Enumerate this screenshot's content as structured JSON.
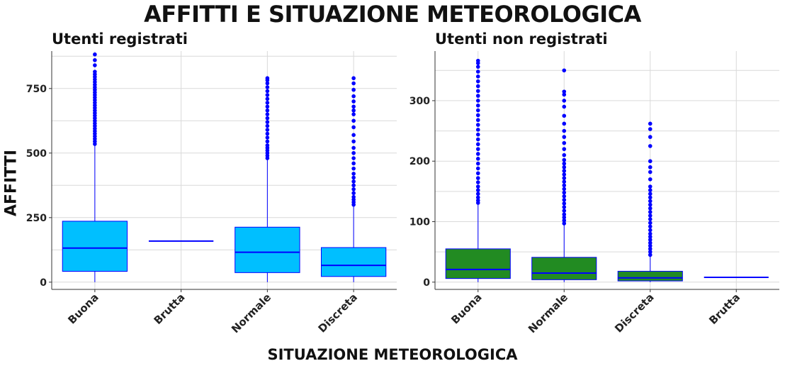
{
  "title": "AFFITTI E SITUAZIONE METEOROLOGICA",
  "xlabel": "SITUAZIONE METEOROLOGICA",
  "ylabel": "AFFITTI",
  "colors": {
    "registered_fill": "#00BFFF",
    "unregistered_fill": "#228B22",
    "line": "#0000FF",
    "grid": "#D9D9D9",
    "axis": "#333333"
  },
  "chart_data": [
    {
      "type": "boxplot",
      "title": "Utenti registrati",
      "fill": "#00BFFF",
      "ylim": [
        -28,
        895
      ],
      "yticks": [
        0,
        250,
        500,
        750
      ],
      "ytick_labels": [
        "0",
        "250",
        "500",
        "750"
      ],
      "grid": true,
      "categories": [
        "Buona",
        "Brutta",
        "Normale",
        "Discreta"
      ],
      "boxes": [
        {
          "category": "Buona",
          "min": 0,
          "q1": 42,
          "median": 132,
          "q3": 236,
          "whisker_high": 530,
          "outliers": [
            535,
            545,
            555,
            565,
            575,
            585,
            595,
            605,
            615,
            625,
            635,
            645,
            655,
            665,
            675,
            685,
            695,
            705,
            715,
            725,
            735,
            745,
            755,
            765,
            775,
            785,
            795,
            805,
            815,
            840,
            860,
            882
          ]
        },
        {
          "category": "Brutta",
          "min": 159,
          "q1": 159,
          "median": 159,
          "q3": 159,
          "whisker_high": 159,
          "outliers": []
        },
        {
          "category": "Normale",
          "min": 0,
          "q1": 37,
          "median": 116,
          "q3": 213,
          "whisker_high": 476,
          "outliers": [
            480,
            490,
            500,
            510,
            520,
            530,
            545,
            560,
            575,
            590,
            605,
            620,
            635,
            650,
            665,
            680,
            695,
            710,
            725,
            740,
            755,
            770,
            782,
            790
          ]
        },
        {
          "category": "Discreta",
          "min": 0,
          "q1": 22,
          "median": 65,
          "q3": 134,
          "whisker_high": 295,
          "outliers": [
            300,
            310,
            320,
            330,
            345,
            360,
            375,
            390,
            405,
            420,
            440,
            460,
            480,
            500,
            520,
            545,
            570,
            600,
            625,
            650,
            665,
            680,
            700,
            720,
            745,
            770,
            790
          ]
        }
      ]
    },
    {
      "type": "boxplot",
      "title": "Utenti non registrati",
      "fill": "#228B22",
      "ylim": [
        -12,
        382
      ],
      "yticks": [
        0,
        100,
        200,
        300
      ],
      "ytick_labels": [
        "0",
        "100",
        "200",
        "300"
      ],
      "grid": true,
      "categories": [
        "Buona",
        "Normale",
        "Discreta",
        "Brutta"
      ],
      "boxes": [
        {
          "category": "Buona",
          "min": 0,
          "q1": 6,
          "median": 21,
          "q3": 55,
          "whisker_high": 128,
          "outliers": [
            131,
            135,
            140,
            146,
            152,
            158,
            165,
            172,
            180,
            188,
            196,
            204,
            212,
            220,
            228,
            236,
            244,
            252,
            260,
            268,
            276,
            284,
            292,
            300,
            308,
            316,
            324,
            332,
            340,
            348,
            356,
            362,
            366
          ]
        },
        {
          "category": "Normale",
          "min": 0,
          "q1": 4,
          "median": 15,
          "q3": 41,
          "whisker_high": 95,
          "outliers": [
            97,
            102,
            107,
            112,
            118,
            124,
            130,
            136,
            142,
            148,
            154,
            160,
            166,
            172,
            178,
            184,
            190,
            196,
            202,
            210,
            220,
            230,
            240,
            250,
            262,
            275,
            290,
            300,
            310,
            315,
            350
          ]
        },
        {
          "category": "Discreta",
          "min": 0,
          "q1": 2,
          "median": 7,
          "q3": 18,
          "whisker_high": 43,
          "outliers": [
            45,
            50,
            55,
            60,
            65,
            70,
            75,
            80,
            86,
            92,
            98,
            104,
            110,
            116,
            122,
            128,
            134,
            140,
            146,
            152,
            158,
            170,
            182,
            190,
            200,
            225,
            240,
            253,
            262
          ]
        },
        {
          "category": "Brutta",
          "min": 8,
          "q1": 8,
          "median": 8,
          "q3": 8,
          "whisker_high": 8,
          "outliers": []
        }
      ]
    }
  ]
}
